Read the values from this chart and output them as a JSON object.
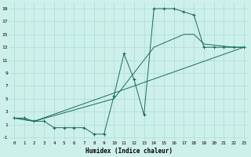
{
  "bg_color": "#cef0ea",
  "grid_color": "#aaddd6",
  "line_color": "#1a6b60",
  "xlabel": "Humidex (Indice chaleur)",
  "xlim": [
    -0.5,
    23.5
  ],
  "ylim": [
    -1.5,
    20
  ],
  "yticks": [
    -1,
    1,
    3,
    5,
    7,
    9,
    11,
    13,
    15,
    17,
    19
  ],
  "xticks": [
    0,
    1,
    2,
    3,
    4,
    5,
    6,
    7,
    8,
    9,
    10,
    11,
    12,
    13,
    14,
    15,
    16,
    17,
    18,
    19,
    20,
    21,
    22,
    23
  ],
  "line1_x": [
    0,
    1,
    2,
    3,
    4,
    5,
    6,
    7,
    8,
    9,
    10,
    11,
    12,
    13,
    14,
    15,
    16,
    17,
    18,
    19,
    20,
    21,
    22,
    23
  ],
  "line1_y": [
    2,
    2,
    1.5,
    1.5,
    0.5,
    0.5,
    0.5,
    0.5,
    -0.5,
    -0.5,
    5.5,
    12,
    8,
    2.5,
    19,
    19,
    19,
    18.5,
    18,
    13,
    13,
    13,
    13,
    13
  ],
  "line2_x": [
    0,
    2,
    10,
    14,
    17,
    18,
    19,
    22,
    23
  ],
  "line2_y": [
    2,
    1.5,
    5,
    13,
    15,
    15,
    13.5,
    13,
    13
  ],
  "line3_x": [
    0,
    2,
    23
  ],
  "line3_y": [
    2,
    1.5,
    13
  ]
}
